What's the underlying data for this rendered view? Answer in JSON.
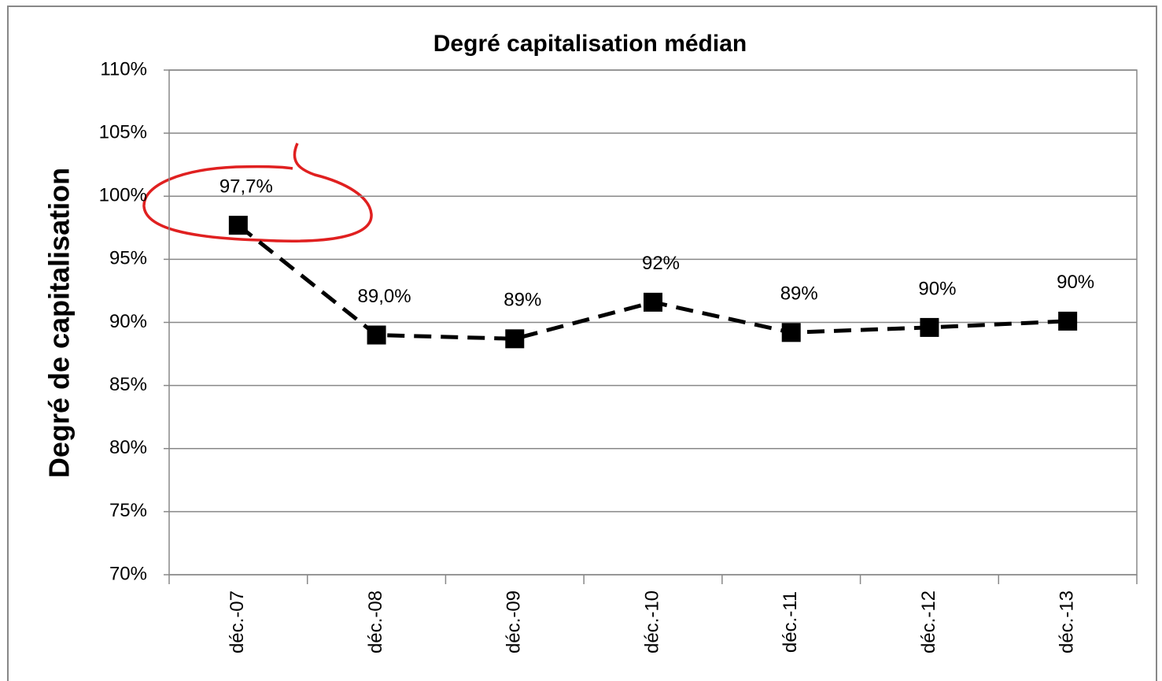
{
  "chart_data": {
    "type": "line",
    "title": "Degré capitalisation médian",
    "y_label": "Degré de capitalisation",
    "categories": [
      "déc.-07",
      "déc.-08",
      "déc.-09",
      "déc.-10",
      "déc.-11",
      "déc.-12",
      "déc.-13"
    ],
    "values": [
      97.7,
      89.0,
      88.7,
      91.6,
      89.2,
      89.6,
      90.1
    ],
    "value_labels": [
      "97,7%",
      "89,0%",
      "89%",
      "92%",
      "89%",
      "90%",
      "90%"
    ],
    "color": "#000000",
    "line_style": "dashed",
    "marker": "square",
    "ylim": [
      70,
      110
    ],
    "yticks": [
      {
        "value": 70,
        "label": "70%"
      },
      {
        "value": 75,
        "label": "75%"
      },
      {
        "value": 80,
        "label": "80%"
      },
      {
        "value": 85,
        "label": "85%"
      },
      {
        "value": 90,
        "label": "90%"
      },
      {
        "value": 95,
        "label": "95%"
      },
      {
        "value": 100,
        "label": "100%"
      },
      {
        "value": 105,
        "label": "105%"
      },
      {
        "value": 110,
        "label": "110%"
      }
    ],
    "grid": true
  }
}
